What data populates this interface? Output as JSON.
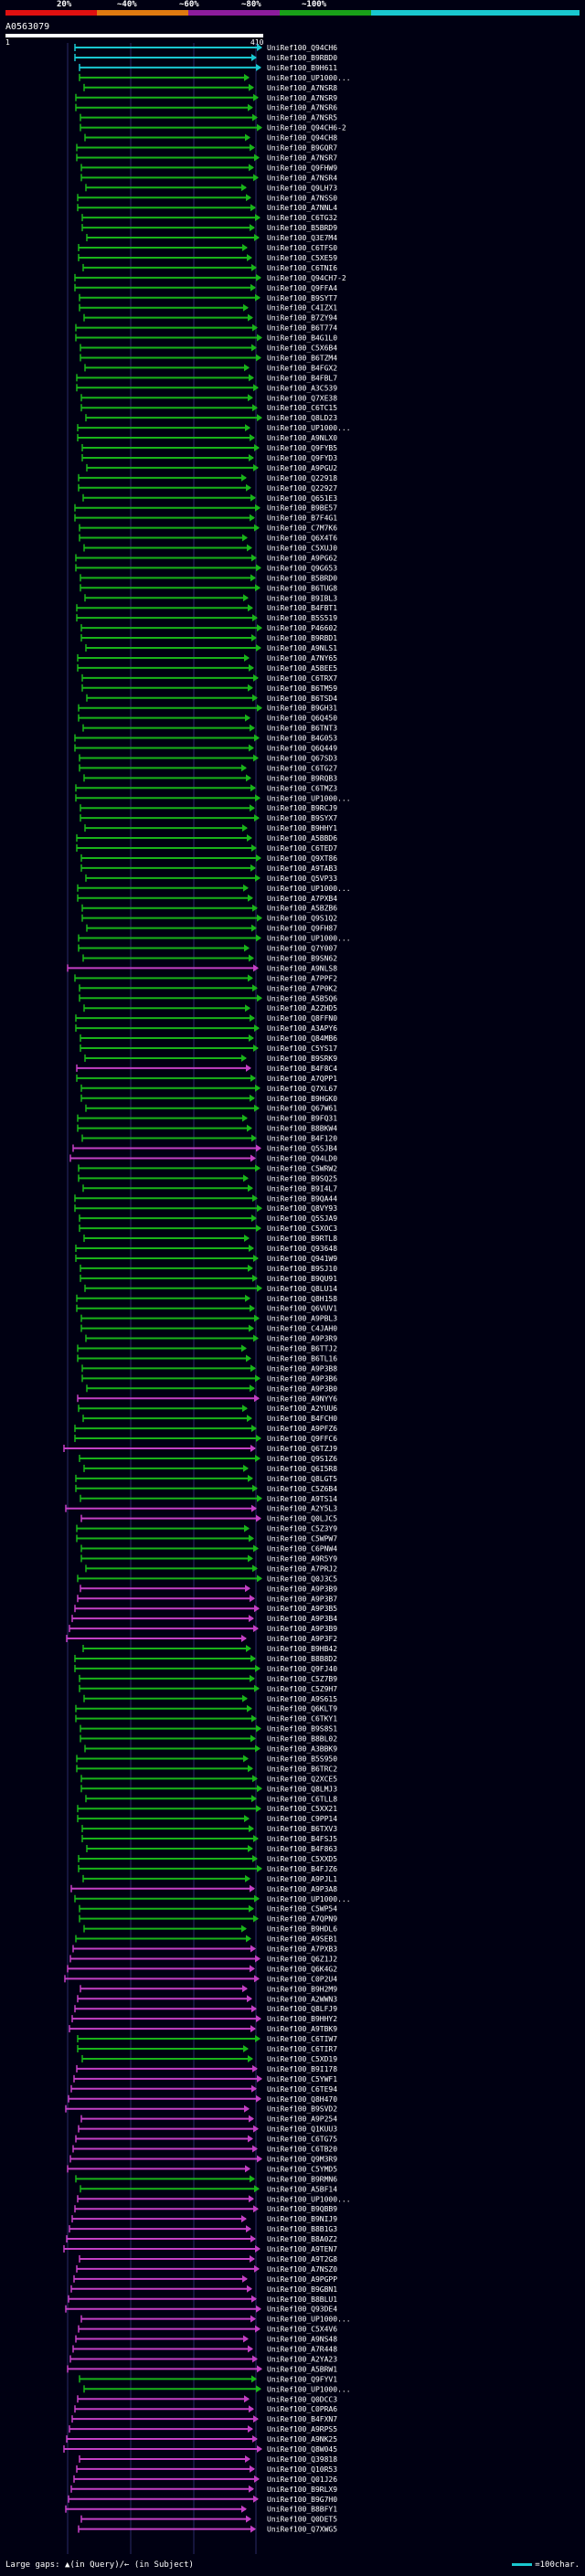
{
  "scale": {
    "labels": [
      "20%",
      "~40%",
      "~60%",
      "~80%",
      "~100%"
    ],
    "colors": [
      "#e01010",
      "#e07a10",
      "#8c1c9c",
      "#19a019",
      "#19c7cf"
    ]
  },
  "query": {
    "id": "A0563079",
    "start": "1",
    "end": "410"
  },
  "footer": {
    "left": "Large gaps: ▲(in Query)/← (in Subject)",
    "right": "=100char."
  },
  "hits": [
    {
      "label": "UniRef100_Q94CH6",
      "c": "cyan"
    },
    {
      "label": "UniRef100_B9RBD0",
      "c": "cyan"
    },
    {
      "label": "UniRef100_B9H611",
      "c": "cyan"
    },
    {
      "label": "UniRef100_UP1000...",
      "c": "green"
    },
    {
      "label": "UniRef100_A7NSR8",
      "c": "green"
    },
    {
      "label": "UniRef100_A7NSR9",
      "c": "green"
    },
    {
      "label": "UniRef100_A7NSR6",
      "c": "green"
    },
    {
      "label": "UniRef100_A7NSR5",
      "c": "green"
    },
    {
      "label": "UniRef100_Q94CH6-2",
      "c": "green"
    },
    {
      "label": "UniRef100_Q94CH8",
      "c": "green"
    },
    {
      "label": "UniRef100_B9GQR7",
      "c": "green"
    },
    {
      "label": "UniRef100_A7NSR7",
      "c": "green"
    },
    {
      "label": "UniRef100_Q9FHW9",
      "c": "green"
    },
    {
      "label": "UniRef100_A7NSR4",
      "c": "green"
    },
    {
      "label": "UniRef100_Q9LH73",
      "c": "green"
    },
    {
      "label": "UniRef100_A7NSS0",
      "c": "green"
    },
    {
      "label": "UniRef100_A7NNL4",
      "c": "green"
    },
    {
      "label": "UniRef100_C6TG32",
      "c": "green"
    },
    {
      "label": "UniRef100_B5BRD9",
      "c": "green"
    },
    {
      "label": "UniRef100_Q3E7M4",
      "c": "green"
    },
    {
      "label": "UniRef100_C6TFS0",
      "c": "green"
    },
    {
      "label": "UniRef100_C5XE59",
      "c": "green"
    },
    {
      "label": "UniRef100_C6TNI6",
      "c": "green"
    },
    {
      "label": "UniRef100_Q94CH7-2",
      "c": "green"
    },
    {
      "label": "UniRef100_Q9FFA4",
      "c": "green"
    },
    {
      "label": "UniRef100_B9SYT7",
      "c": "green"
    },
    {
      "label": "UniRef100_C4IZX1",
      "c": "green"
    },
    {
      "label": "UniRef100_B7ZY94",
      "c": "green"
    },
    {
      "label": "UniRef100_B6T774",
      "c": "green"
    },
    {
      "label": "UniRef100_B4G1L0",
      "c": "green"
    },
    {
      "label": "UniRef100_C5X6B4",
      "c": "green"
    },
    {
      "label": "UniRef100_B6TZM4",
      "c": "green"
    },
    {
      "label": "UniRef100_B4FGX2",
      "c": "green"
    },
    {
      "label": "UniRef100_B4FBL7",
      "c": "green"
    },
    {
      "label": "UniRef100_A3C539",
      "c": "green"
    },
    {
      "label": "UniRef100_Q7XE38",
      "c": "green"
    },
    {
      "label": "UniRef100_C6TC15",
      "c": "green"
    },
    {
      "label": "UniRef100_Q8LD23",
      "c": "green"
    },
    {
      "label": "UniRef100_UP1000...",
      "c": "green"
    },
    {
      "label": "UniRef100_A9NLX0",
      "c": "green"
    },
    {
      "label": "UniRef100_Q9FYB5",
      "c": "green"
    },
    {
      "label": "UniRef100_Q9FYD3",
      "c": "green"
    },
    {
      "label": "UniRef100_A9PGU2",
      "c": "green"
    },
    {
      "label": "UniRef100_Q22918",
      "c": "green"
    },
    {
      "label": "UniRef100_Q22927",
      "c": "green"
    },
    {
      "label": "UniRef100_Q651E3",
      "c": "green"
    },
    {
      "label": "UniRef100_B9BE57",
      "c": "green"
    },
    {
      "label": "UniRef100_B7F4G1",
      "c": "green"
    },
    {
      "label": "UniRef100_C7M7K6",
      "c": "green"
    },
    {
      "label": "UniRef100_Q6X4T6",
      "c": "green"
    },
    {
      "label": "UniRef100_C5XUJ0",
      "c": "green"
    },
    {
      "label": "UniRef100_A9PG62",
      "c": "green"
    },
    {
      "label": "UniRef100_Q9G653",
      "c": "green"
    },
    {
      "label": "UniRef100_B5BRD0",
      "c": "green"
    },
    {
      "label": "UniRef100_B6TUG8",
      "c": "green"
    },
    {
      "label": "UniRef100_B9IBL3",
      "c": "green"
    },
    {
      "label": "UniRef100_B4FBT1",
      "c": "green"
    },
    {
      "label": "UniRef100_B5S519",
      "c": "green"
    },
    {
      "label": "UniRef100_P46602",
      "c": "green"
    },
    {
      "label": "UniRef100_B9RBD1",
      "c": "green"
    },
    {
      "label": "UniRef100_A9NLS1",
      "c": "green"
    },
    {
      "label": "UniRef100_A7NY65",
      "c": "green"
    },
    {
      "label": "UniRef100_A5BEE5",
      "c": "green"
    },
    {
      "label": "UniRef100_C6TRX7",
      "c": "green"
    },
    {
      "label": "UniRef100_B6TM59",
      "c": "green"
    },
    {
      "label": "UniRef100_B6TSD4",
      "c": "green"
    },
    {
      "label": "UniRef100_B9GH31",
      "c": "green"
    },
    {
      "label": "UniRef100_Q6Q450",
      "c": "green"
    },
    {
      "label": "UniRef100_B6TNT3",
      "c": "green"
    },
    {
      "label": "UniRef100_B4G053",
      "c": "green"
    },
    {
      "label": "UniRef100_Q6Q449",
      "c": "green"
    },
    {
      "label": "UniRef100_Q67SD3",
      "c": "green"
    },
    {
      "label": "UniRef100_C6TG27",
      "c": "green"
    },
    {
      "label": "UniRef100_B9RQB3",
      "c": "green"
    },
    {
      "label": "UniRef100_C6TMZ3",
      "c": "green"
    },
    {
      "label": "UniRef100_UP1000...",
      "c": "green"
    },
    {
      "label": "UniRef100_B9RCJ9",
      "c": "green"
    },
    {
      "label": "UniRef100_B9SYX7",
      "c": "green"
    },
    {
      "label": "UniRef100_B9HHY1",
      "c": "green"
    },
    {
      "label": "UniRef100_A5BBD6",
      "c": "green"
    },
    {
      "label": "UniRef100_C6TED7",
      "c": "green"
    },
    {
      "label": "UniRef100_Q9XT86",
      "c": "green"
    },
    {
      "label": "UniRef100_A9TAB3",
      "c": "green"
    },
    {
      "label": "UniRef100_Q5VP33",
      "c": "green"
    },
    {
      "label": "UniRef100_UP1000...",
      "c": "green"
    },
    {
      "label": "UniRef100_A7PXB4",
      "c": "green"
    },
    {
      "label": "UniRef100_A5BZB6",
      "c": "green"
    },
    {
      "label": "UniRef100_Q9S1Q2",
      "c": "green"
    },
    {
      "label": "UniRef100_Q9FH87",
      "c": "green"
    },
    {
      "label": "UniRef100_UP1000...",
      "c": "green"
    },
    {
      "label": "UniRef100_Q7Y007",
      "c": "green"
    },
    {
      "label": "UniRef100_B9SN62",
      "c": "green"
    },
    {
      "label": "UniRef100_A9NLS8",
      "c": "magenta"
    },
    {
      "label": "UniRef100_A7PPF2",
      "c": "green"
    },
    {
      "label": "UniRef100_A7P0K2",
      "c": "green"
    },
    {
      "label": "UniRef100_A5B5Q6",
      "c": "green"
    },
    {
      "label": "UniRef100_A2ZHD5",
      "c": "green"
    },
    {
      "label": "UniRef100_Q8FFN0",
      "c": "green"
    },
    {
      "label": "UniRef100_A3APY6",
      "c": "green"
    },
    {
      "label": "UniRef100_Q84MB6",
      "c": "green"
    },
    {
      "label": "UniRef100_C5YS17",
      "c": "green"
    },
    {
      "label": "UniRef100_B9SRK9",
      "c": "green"
    },
    {
      "label": "UniRef100_B4F8C4",
      "c": "magenta"
    },
    {
      "label": "UniRef100_A7QPP1",
      "c": "green"
    },
    {
      "label": "UniRef100_Q7XL67",
      "c": "green"
    },
    {
      "label": "UniRef100_B9HGK0",
      "c": "green"
    },
    {
      "label": "UniRef100_Q67W61",
      "c": "green"
    },
    {
      "label": "UniRef100_B9FQ31",
      "c": "green"
    },
    {
      "label": "UniRef100_B8BKW4",
      "c": "green"
    },
    {
      "label": "UniRef100_B4F120",
      "c": "green"
    },
    {
      "label": "UniRef100_Q5SJB4",
      "c": "magenta"
    },
    {
      "label": "UniRef100_Q94LD0",
      "c": "magenta"
    },
    {
      "label": "UniRef100_C5WRW2",
      "c": "green"
    },
    {
      "label": "UniRef100_B9SQ25",
      "c": "green"
    },
    {
      "label": "UniRef100_B9I4L7",
      "c": "green"
    },
    {
      "label": "UniRef100_B9QA44",
      "c": "green"
    },
    {
      "label": "UniRef100_Q8VY93",
      "c": "green"
    },
    {
      "label": "UniRef100_Q5SJA9",
      "c": "green"
    },
    {
      "label": "UniRef100_C5XOC3",
      "c": "green"
    },
    {
      "label": "UniRef100_B9RTL8",
      "c": "green"
    },
    {
      "label": "UniRef100_Q93648",
      "c": "green"
    },
    {
      "label": "UniRef100_Q941W9",
      "c": "green"
    },
    {
      "label": "UniRef100_B9SJ10",
      "c": "green"
    },
    {
      "label": "UniRef100_B9QU91",
      "c": "green"
    },
    {
      "label": "UniRef100_Q8LU14",
      "c": "green"
    },
    {
      "label": "UniRef100_Q8H158",
      "c": "green"
    },
    {
      "label": "UniRef100_Q6VUV1",
      "c": "green"
    },
    {
      "label": "UniRef100_A9PBL3",
      "c": "green"
    },
    {
      "label": "UniRef100_C4JAH0",
      "c": "green"
    },
    {
      "label": "UniRef100_A9P3R9",
      "c": "green"
    },
    {
      "label": "UniRef100_B6TTJ2",
      "c": "green"
    },
    {
      "label": "UniRef100_B6TL16",
      "c": "green"
    },
    {
      "label": "UniRef100_A9P3B8",
      "c": "green"
    },
    {
      "label": "UniRef100_A9P3B6",
      "c": "green"
    },
    {
      "label": "UniRef100_A9P3B0",
      "c": "green"
    },
    {
      "label": "UniRef100_A9NYY6",
      "c": "magenta"
    },
    {
      "label": "UniRef100_A2YUU6",
      "c": "green"
    },
    {
      "label": "UniRef100_B4FCH0",
      "c": "green"
    },
    {
      "label": "UniRef100_A9PFZ6",
      "c": "green"
    },
    {
      "label": "UniRef100_Q9FFC6",
      "c": "green"
    },
    {
      "label": "UniRef100_Q6TZJ9",
      "c": "magenta"
    },
    {
      "label": "UniRef100_Q9S1Z6",
      "c": "green"
    },
    {
      "label": "UniRef100_Q6I5R8",
      "c": "green"
    },
    {
      "label": "UniRef100_Q8LGT5",
      "c": "green"
    },
    {
      "label": "UniRef100_C5Z6B4",
      "c": "green"
    },
    {
      "label": "UniRef100_A9TS14",
      "c": "green"
    },
    {
      "label": "UniRef100_A2Y5L3",
      "c": "magenta"
    },
    {
      "label": "UniRef100_Q0LJC5",
      "c": "magenta"
    },
    {
      "label": "UniRef100_C5Z3Y9",
      "c": "green"
    },
    {
      "label": "UniRef100_C5WPW7",
      "c": "green"
    },
    {
      "label": "UniRef100_C6PNW4",
      "c": "green"
    },
    {
      "label": "UniRef100_A9R5Y9",
      "c": "green"
    },
    {
      "label": "UniRef100_A7PRJ2",
      "c": "green"
    },
    {
      "label": "UniRef100_Q0J3C5",
      "c": "green"
    },
    {
      "label": "UniRef100_A9P3B9",
      "c": "magenta"
    },
    {
      "label": "UniRef100_A9P3B7",
      "c": "magenta"
    },
    {
      "label": "UniRef100_A9P3B5",
      "c": "magenta"
    },
    {
      "label": "UniRef100_A9P3B4",
      "c": "magenta"
    },
    {
      "label": "UniRef100_A9P3B9",
      "c": "magenta"
    },
    {
      "label": "UniRef100_A9P3F2",
      "c": "magenta"
    },
    {
      "label": "UniRef100_B9HB42",
      "c": "green"
    },
    {
      "label": "UniRef100_B8B8D2",
      "c": "green"
    },
    {
      "label": "UniRef100_Q9FJ40",
      "c": "green"
    },
    {
      "label": "UniRef100_C5Z7B9",
      "c": "green"
    },
    {
      "label": "UniRef100_C5Z9H7",
      "c": "green"
    },
    {
      "label": "UniRef100_A9S615",
      "c": "green"
    },
    {
      "label": "UniRef100_Q6KLT9",
      "c": "green"
    },
    {
      "label": "UniRef100_C6TKY1",
      "c": "green"
    },
    {
      "label": "UniRef100_B9S8S1",
      "c": "green"
    },
    {
      "label": "UniRef100_B8BL02",
      "c": "green"
    },
    {
      "label": "UniRef100_A3BBK9",
      "c": "green"
    },
    {
      "label": "UniRef100_B5S950",
      "c": "green"
    },
    {
      "label": "UniRef100_B6TRC2",
      "c": "green"
    },
    {
      "label": "UniRef100_Q2XCE5",
      "c": "green"
    },
    {
      "label": "UniRef100_Q8LMJ3",
      "c": "green"
    },
    {
      "label": "UniRef100_C6TLL8",
      "c": "green"
    },
    {
      "label": "UniRef100_C5XX21",
      "c": "green"
    },
    {
      "label": "UniRef100_C9PP14",
      "c": "green"
    },
    {
      "label": "UniRef100_B6TXV3",
      "c": "green"
    },
    {
      "label": "UniRef100_B4FSJ5",
      "c": "green"
    },
    {
      "label": "UniRef100_B4F863",
      "c": "green"
    },
    {
      "label": "UniRef100_C5XXD5",
      "c": "green"
    },
    {
      "label": "UniRef100_B4FJZ6",
      "c": "green"
    },
    {
      "label": "UniRef100_A9PJL1",
      "c": "green"
    },
    {
      "label": "UniRef100_A9P3A8",
      "c": "magenta"
    },
    {
      "label": "UniRef100_UP1000...",
      "c": "green"
    },
    {
      "label": "UniRef100_C5WP54",
      "c": "green"
    },
    {
      "label": "UniRef100_A7QPN9",
      "c": "green"
    },
    {
      "label": "UniRef100_B9HDL6",
      "c": "green"
    },
    {
      "label": "UniRef100_A9SEB1",
      "c": "green"
    },
    {
      "label": "UniRef100_A7PXB3",
      "c": "magenta"
    },
    {
      "label": "UniRef100_Q6Z1J2",
      "c": "magenta"
    },
    {
      "label": "UniRef100_Q6K4G2",
      "c": "magenta"
    },
    {
      "label": "UniRef100_C0P2U4",
      "c": "magenta"
    },
    {
      "label": "UniRef100_B9H2M9",
      "c": "magenta"
    },
    {
      "label": "UniRef100_A2WWN3",
      "c": "magenta"
    },
    {
      "label": "UniRef100_Q8LFJ9",
      "c": "magenta"
    },
    {
      "label": "UniRef100_B9HHY2",
      "c": "magenta"
    },
    {
      "label": "UniRef100_A9TBK9",
      "c": "magenta"
    },
    {
      "label": "UniRef100_C6TIW7",
      "c": "green"
    },
    {
      "label": "UniRef100_C6TIR7",
      "c": "green"
    },
    {
      "label": "UniRef100_C5XD19",
      "c": "green"
    },
    {
      "label": "UniRef100_B9I178",
      "c": "magenta"
    },
    {
      "label": "UniRef100_C5YWF1",
      "c": "magenta"
    },
    {
      "label": "UniRef100_C6TE94",
      "c": "magenta"
    },
    {
      "label": "UniRef100_Q8H470",
      "c": "magenta"
    },
    {
      "label": "UniRef100_B9SVD2",
      "c": "magenta"
    },
    {
      "label": "UniRef100_A9P254",
      "c": "magenta"
    },
    {
      "label": "UniRef100_Q1KUU3",
      "c": "magenta"
    },
    {
      "label": "UniRef100_C6TG75",
      "c": "magenta"
    },
    {
      "label": "UniRef100_C6TB20",
      "c": "magenta"
    },
    {
      "label": "UniRef100_Q9M3R9",
      "c": "magenta"
    },
    {
      "label": "UniRef100_C5YMD5",
      "c": "magenta"
    },
    {
      "label": "UniRef100_B9RMN6",
      "c": "green"
    },
    {
      "label": "UniRef100_A5BF14",
      "c": "green"
    },
    {
      "label": "UniRef100_UP1000...",
      "c": "magenta"
    },
    {
      "label": "UniRef100_B9QBB9",
      "c": "magenta"
    },
    {
      "label": "UniRef100_B9NIJ9",
      "c": "magenta"
    },
    {
      "label": "UniRef100_B8B1G3",
      "c": "magenta"
    },
    {
      "label": "UniRef100_B8A0Z2",
      "c": "magenta"
    },
    {
      "label": "UniRef100_A9TEN7",
      "c": "magenta"
    },
    {
      "label": "UniRef100_A9T2G8",
      "c": "magenta"
    },
    {
      "label": "UniRef100_A7NSZ0",
      "c": "magenta"
    },
    {
      "label": "UniRef100_A9PGPP",
      "c": "magenta"
    },
    {
      "label": "UniRef100_B9GBN1",
      "c": "magenta"
    },
    {
      "label": "UniRef100_B8BLU1",
      "c": "magenta"
    },
    {
      "label": "UniRef100_Q93DE4",
      "c": "magenta"
    },
    {
      "label": "UniRef100_UP1000...",
      "c": "magenta"
    },
    {
      "label": "UniRef100_C5X4V6",
      "c": "magenta"
    },
    {
      "label": "UniRef100_A9NS48",
      "c": "magenta"
    },
    {
      "label": "UniRef100_A7R448",
      "c": "magenta"
    },
    {
      "label": "UniRef100_A2YA23",
      "c": "magenta"
    },
    {
      "label": "UniRef100_A5BRW1",
      "c": "magenta"
    },
    {
      "label": "UniRef100_Q9FYV1",
      "c": "green"
    },
    {
      "label": "UniRef100_UP1000...",
      "c": "green"
    },
    {
      "label": "UniRef100_Q0DCC3",
      "c": "magenta"
    },
    {
      "label": "UniRef100_C0PRA6",
      "c": "magenta"
    },
    {
      "label": "UniRef100_B4FXN7",
      "c": "magenta"
    },
    {
      "label": "UniRef100_A9RPS5",
      "c": "magenta"
    },
    {
      "label": "UniRef100_A9NK25",
      "c": "magenta"
    },
    {
      "label": "UniRef100_Q8W045",
      "c": "magenta"
    },
    {
      "label": "UniRef100_Q39818",
      "c": "magenta"
    },
    {
      "label": "UniRef100_Q10R53",
      "c": "magenta"
    },
    {
      "label": "UniRef100_Q01J26",
      "c": "magenta"
    },
    {
      "label": "UniRef100_B9RLX9",
      "c": "magenta"
    },
    {
      "label": "UniRef100_B9G7H0",
      "c": "magenta"
    },
    {
      "label": "UniRef100_B8BFY1",
      "c": "magenta"
    },
    {
      "label": "UniRef100_Q0DET5",
      "c": "magenta"
    },
    {
      "label": "UniRef100_Q7XWG5",
      "c": "magenta"
    }
  ]
}
